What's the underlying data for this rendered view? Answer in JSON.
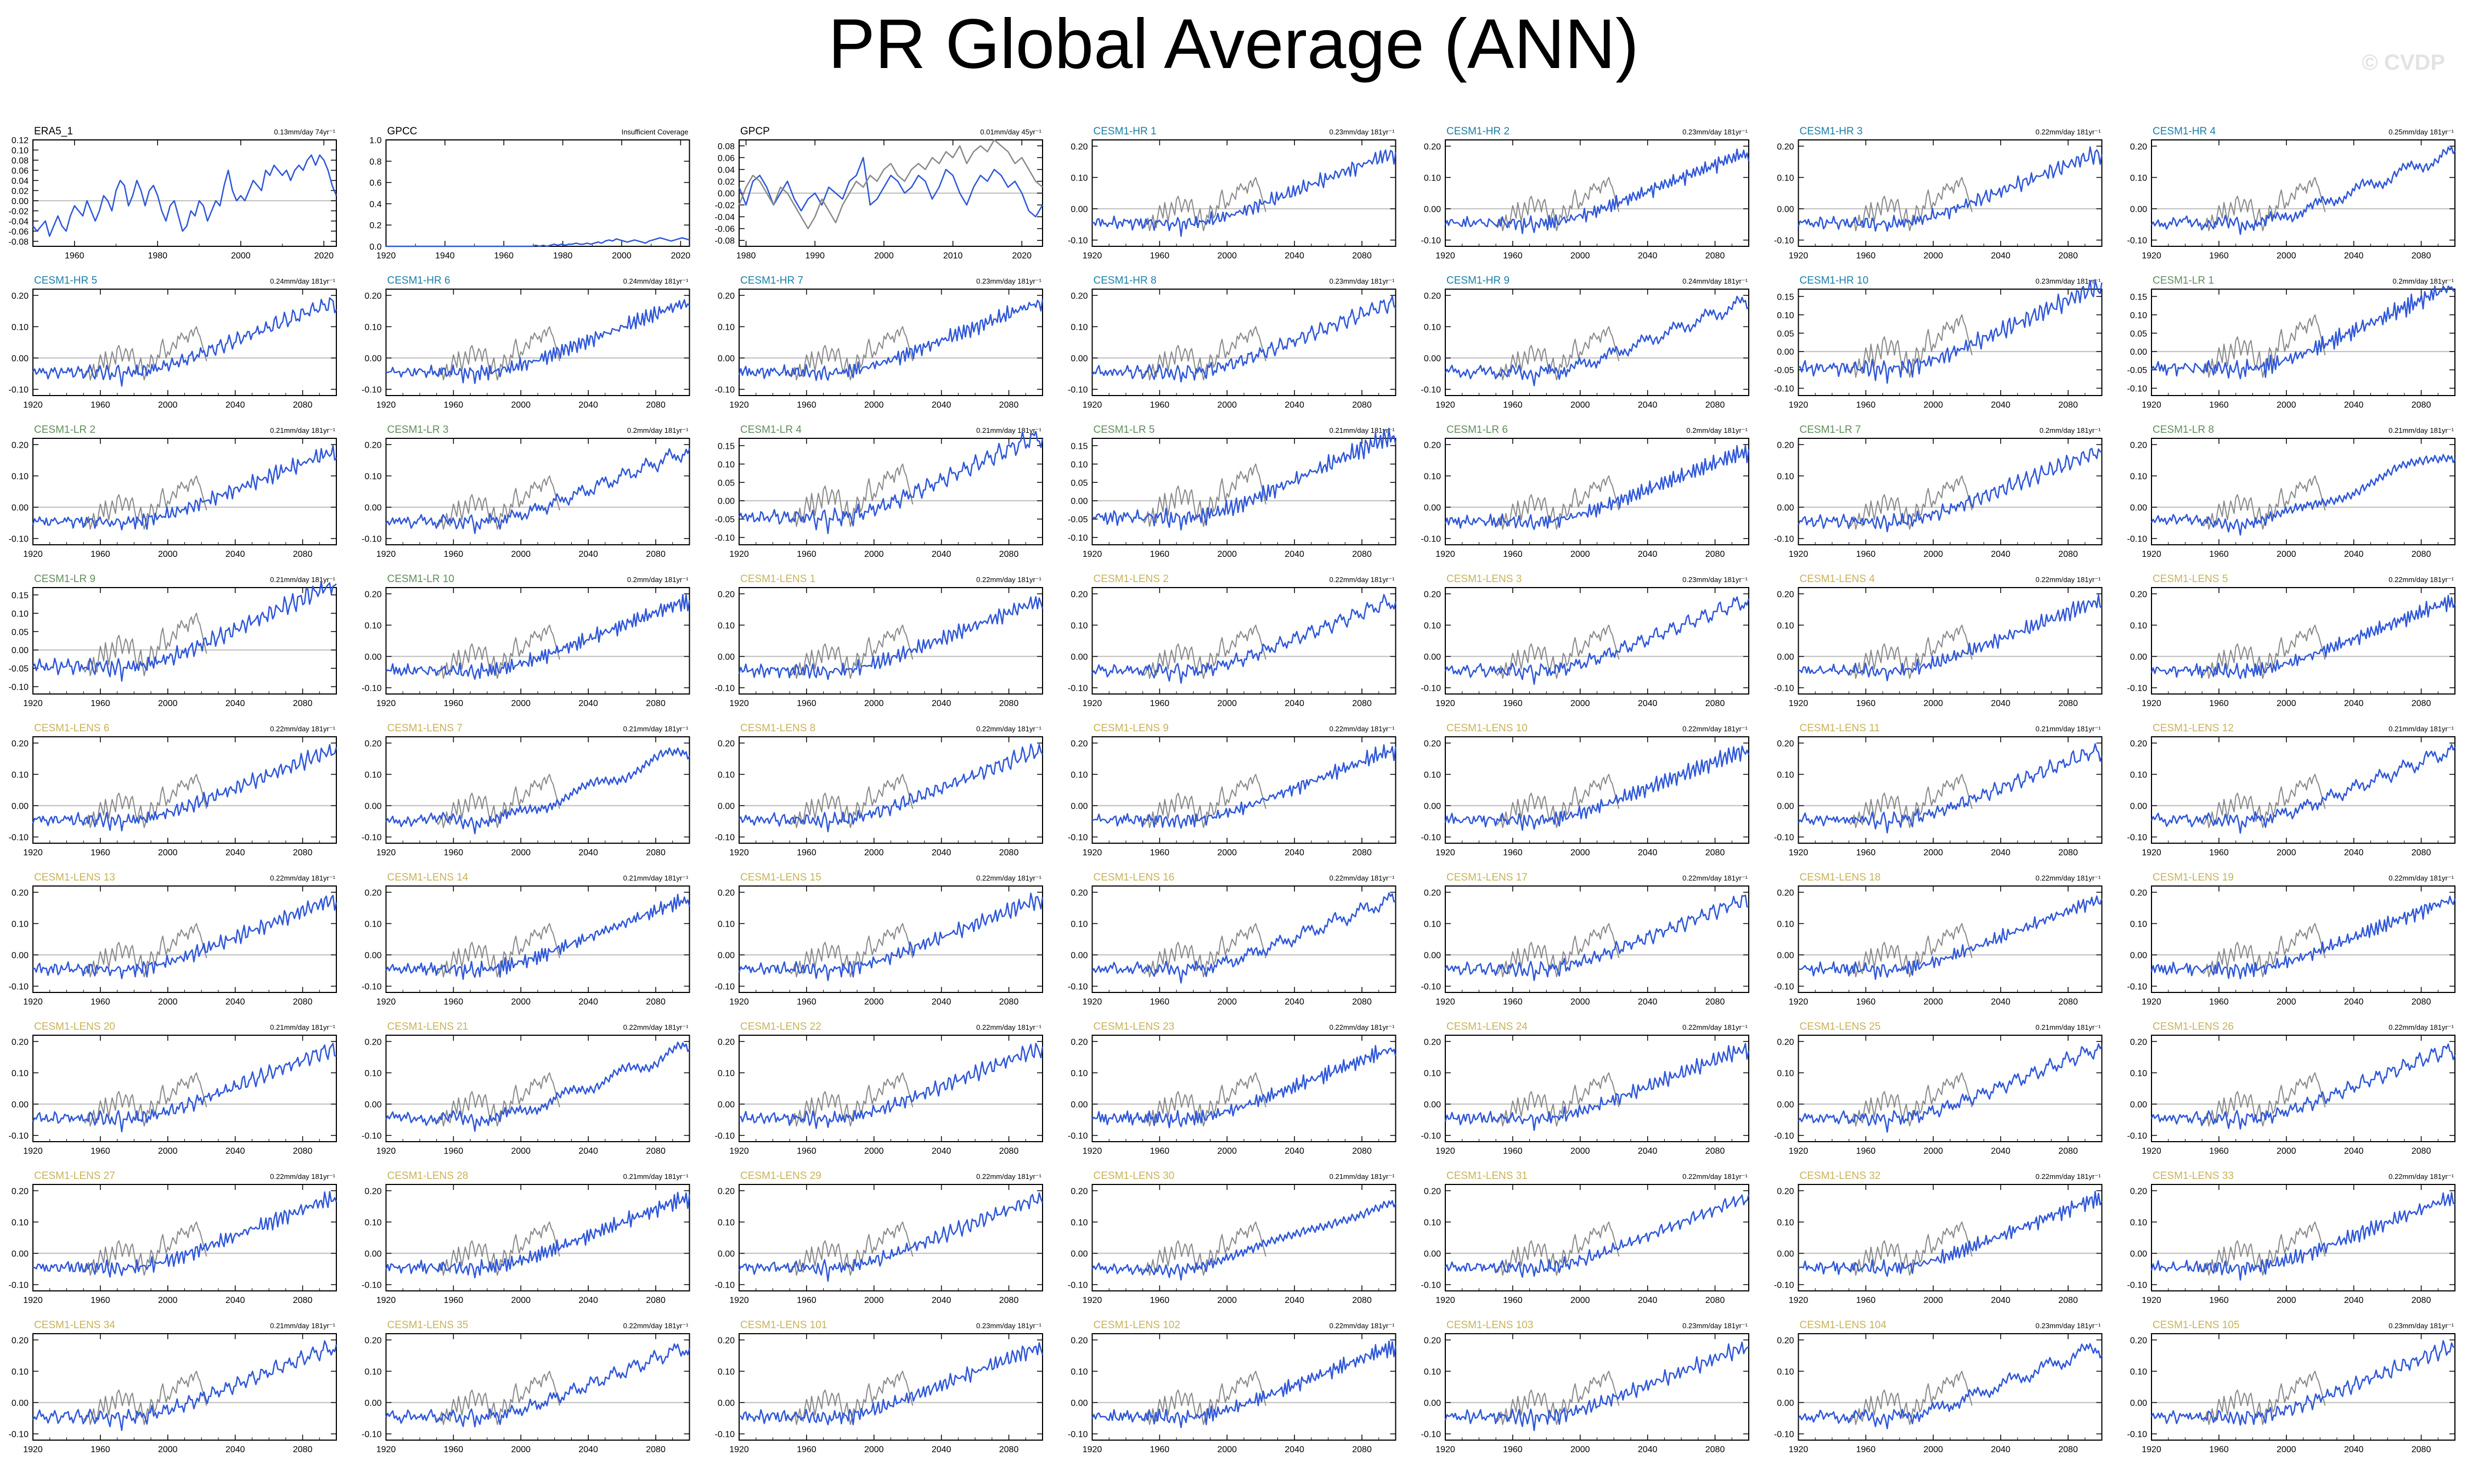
{
  "title": "PR Global Average (ANN)",
  "watermark": "© CVDP",
  "colors": {
    "primary_line": "#2f57d8",
    "secondary_line": "#8a8a8a",
    "hr_label": "#1a7fa8",
    "lr_label": "#5f8f5a",
    "lens_label": "#c9b25a",
    "obs_label": "#000000"
  },
  "chart_data": [
    {
      "name": "ERA5_1",
      "group": "obs",
      "trend": "0.13mm/day 74yr⁻¹",
      "type": "line",
      "x_range": [
        1950,
        2023
      ],
      "xticks": [
        "1960",
        "1980",
        "2000",
        "2020"
      ],
      "ylim": [
        -0.09,
        0.12
      ],
      "yticks": [
        "0.12",
        "0.10",
        "0.08",
        "0.06",
        "0.04",
        "0.02",
        "0.00",
        "-0.02",
        "-0.04",
        "-0.06",
        "-0.08"
      ],
      "series": [
        {
          "values": [
            -0.05,
            -0.06,
            -0.05,
            -0.04,
            -0.07,
            -0.05,
            -0.03,
            -0.05,
            -0.06,
            -0.03,
            -0.01,
            -0.02,
            -0.03,
            0.0,
            -0.02,
            -0.04,
            -0.02,
            0.01,
            0.0,
            -0.02,
            0.02,
            0.04,
            0.03,
            -0.01,
            0.01,
            0.04,
            0.02,
            -0.01,
            0.02,
            0.03,
            0.01,
            -0.02,
            -0.04,
            -0.01,
            0.0,
            -0.03,
            -0.06,
            -0.05,
            -0.02,
            -0.03,
            0.0,
            -0.01,
            -0.04,
            -0.02,
            0.0,
            -0.01,
            0.03,
            0.06,
            0.02,
            0.0,
            0.01,
            0.0,
            0.02,
            0.04,
            0.03,
            0.02,
            0.06,
            0.05,
            0.07,
            0.06,
            0.05,
            0.06,
            0.04,
            0.06,
            0.07,
            0.06,
            0.08,
            0.09,
            0.07,
            0.09,
            0.08,
            0.06,
            0.03,
            0.01
          ]
        }
      ]
    },
    {
      "name": "GPCC",
      "group": "obs",
      "trend": "Insufficient Coverage",
      "type": "line",
      "x_range": [
        1920,
        2023
      ],
      "xticks": [
        "1920",
        "1940",
        "1960",
        "1980",
        "2000",
        "2020"
      ],
      "ylim": [
        0,
        1.0
      ],
      "yticks": [
        "1.0",
        "0.8",
        "0.6",
        "0.4",
        "0.2",
        "0.0"
      ],
      "series": [
        {
          "values": [
            0.0,
            0.0,
            0.0,
            0.0,
            0.0,
            0.0,
            0.0,
            0.0,
            0.0,
            0.0,
            0.0,
            0.0,
            0.0,
            0.0,
            0.0,
            0.0,
            0.0,
            0.0,
            0.0,
            0.0,
            0.0,
            0.0,
            0.0,
            0.0,
            0.0,
            0.0,
            0.0,
            0.0,
            0.0,
            0.0,
            0.0,
            0.0,
            0.0,
            0.0,
            0.0,
            0.0,
            0.0,
            0.0,
            0.0,
            0.0,
            0.0,
            0.01,
            0.0,
            0.01,
            0.0,
            0.01,
            0.02,
            0.01,
            0.02,
            0.01,
            0.02,
            0.02,
            0.03,
            0.02,
            0.02,
            0.03,
            0.02,
            0.03,
            0.04,
            0.03,
            0.05,
            0.06,
            0.05,
            0.07,
            0.06,
            0.05,
            0.04,
            0.05,
            0.06,
            0.05,
            0.04,
            0.03,
            0.05,
            0.06,
            0.07,
            0.08,
            0.07,
            0.06,
            0.05,
            0.06,
            0.07,
            0.08,
            0.07,
            0.06
          ]
        }
      ]
    },
    {
      "name": "GPCP",
      "group": "obs",
      "trend": "0.01mm/day 45yr⁻¹",
      "type": "line",
      "x_range": [
        1979,
        2023
      ],
      "xticks": [
        "1980",
        "1990",
        "2000",
        "2010",
        "2020"
      ],
      "ylim": [
        -0.09,
        0.09
      ],
      "yticks": [
        "0.08",
        "0.06",
        "0.04",
        "0.02",
        "0.00",
        "-0.02",
        "-0.04",
        "-0.06",
        "-0.08"
      ],
      "series": [
        {
          "values": [
            0.01,
            -0.02,
            0.02,
            0.03,
            0.01,
            -0.02,
            0.0,
            0.02,
            -0.01,
            -0.03,
            -0.01,
            0.0,
            -0.02,
            0.01,
            0.0,
            -0.01,
            0.02,
            0.03,
            0.06,
            -0.02,
            -0.01,
            0.01,
            0.03,
            0.02,
            0.0,
            0.01,
            0.03,
            0.02,
            -0.01,
            0.01,
            0.04,
            0.03,
            0.0,
            -0.02,
            0.01,
            0.03,
            0.02,
            0.04,
            0.03,
            0.01,
            0.02,
            0.0,
            -0.03,
            -0.04,
            -0.02
          ]
        },
        {
          "values": [
            -0.02,
            0.01,
            0.03,
            0.02,
            0.0,
            -0.02,
            0.01,
            0.0,
            -0.02,
            -0.04,
            -0.06,
            -0.04,
            -0.01,
            -0.03,
            -0.05,
            -0.02,
            0.0,
            0.02,
            0.01,
            0.03,
            0.02,
            0.04,
            0.05,
            0.03,
            0.02,
            0.04,
            0.05,
            0.04,
            0.06,
            0.05,
            0.07,
            0.06,
            0.08,
            0.05,
            0.07,
            0.08,
            0.07,
            0.09,
            0.08,
            0.07,
            0.05,
            0.06,
            0.04,
            0.02,
            0.01
          ]
        }
      ]
    },
    {
      "name": "CESM1-HR 1",
      "group": "hr",
      "trend": "0.23mm/day 181yr⁻¹"
    },
    {
      "name": "CESM1-HR 2",
      "group": "hr",
      "trend": "0.23mm/day 181yr⁻¹"
    },
    {
      "name": "CESM1-HR 3",
      "group": "hr",
      "trend": "0.22mm/day 181yr⁻¹"
    },
    {
      "name": "CESM1-HR 4",
      "group": "hr",
      "trend": "0.25mm/day 181yr⁻¹"
    },
    {
      "name": "CESM1-HR 5",
      "group": "hr",
      "trend": "0.24mm/day 181yr⁻¹"
    },
    {
      "name": "CESM1-HR 6",
      "group": "hr",
      "trend": "0.24mm/day 181yr⁻¹"
    },
    {
      "name": "CESM1-HR 7",
      "group": "hr",
      "trend": "0.23mm/day 181yr⁻¹"
    },
    {
      "name": "CESM1-HR 8",
      "group": "hr",
      "trend": "0.23mm/day 181yr⁻¹"
    },
    {
      "name": "CESM1-HR 9",
      "group": "hr",
      "trend": "0.24mm/day 181yr⁻¹"
    },
    {
      "name": "CESM1-HR 10",
      "group": "hr",
      "trend": "0.23mm/day 181yr⁻¹",
      "ylim": [
        -0.12,
        0.17
      ],
      "yticks": [
        "0.15",
        "0.10",
        "0.05",
        "0.00",
        "-0.05",
        "-0.10"
      ]
    },
    {
      "name": "CESM1-LR 1",
      "group": "lr",
      "trend": "0.2mm/day 181yr⁻¹",
      "ylim": [
        -0.12,
        0.17
      ],
      "yticks": [
        "0.15",
        "0.10",
        "0.05",
        "0.00",
        "-0.05",
        "-0.10"
      ]
    },
    {
      "name": "CESM1-LR 2",
      "group": "lr",
      "trend": "0.21mm/day 181yr⁻¹"
    },
    {
      "name": "CESM1-LR 3",
      "group": "lr",
      "trend": "0.2mm/day 181yr⁻¹"
    },
    {
      "name": "CESM1-LR 4",
      "group": "lr",
      "trend": "0.21mm/day 181yr⁻¹",
      "ylim": [
        -0.12,
        0.17
      ],
      "yticks": [
        "0.15",
        "0.10",
        "0.05",
        "0.00",
        "-0.05",
        "-0.10"
      ]
    },
    {
      "name": "CESM1-LR 5",
      "group": "lr",
      "trend": "0.21mm/day 181yr⁻¹",
      "ylim": [
        -0.12,
        0.17
      ],
      "yticks": [
        "0.15",
        "0.10",
        "0.05",
        "0.00",
        "-0.05",
        "-0.10"
      ]
    },
    {
      "name": "CESM1-LR 6",
      "group": "lr",
      "trend": "0.2mm/day 181yr⁻¹"
    },
    {
      "name": "CESM1-LR 7",
      "group": "lr",
      "trend": "0.2mm/day 181yr⁻¹"
    },
    {
      "name": "CESM1-LR 8",
      "group": "lr",
      "trend": "0.21mm/day 181yr⁻¹"
    },
    {
      "name": "CESM1-LR 9",
      "group": "lr",
      "trend": "0.21mm/day 181yr⁻¹",
      "ylim": [
        -0.12,
        0.17
      ],
      "yticks": [
        "0.15",
        "0.10",
        "0.05",
        "0.00",
        "-0.05",
        "-0.10"
      ]
    },
    {
      "name": "CESM1-LR 10",
      "group": "lr",
      "trend": "0.2mm/day 181yr⁻¹"
    },
    {
      "name": "CESM1-LENS 1",
      "group": "lens",
      "trend": "0.22mm/day 181yr⁻¹"
    },
    {
      "name": "CESM1-LENS 2",
      "group": "lens",
      "trend": "0.22mm/day 181yr⁻¹"
    },
    {
      "name": "CESM1-LENS 3",
      "group": "lens",
      "trend": "0.23mm/day 181yr⁻¹"
    },
    {
      "name": "CESM1-LENS 4",
      "group": "lens",
      "trend": "0.22mm/day 181yr⁻¹"
    },
    {
      "name": "CESM1-LENS 5",
      "group": "lens",
      "trend": "0.22mm/day 181yr⁻¹"
    },
    {
      "name": "CESM1-LENS 6",
      "group": "lens",
      "trend": "0.22mm/day 181yr⁻¹"
    },
    {
      "name": "CESM1-LENS 7",
      "group": "lens",
      "trend": "0.21mm/day 181yr⁻¹"
    },
    {
      "name": "CESM1-LENS 8",
      "group": "lens",
      "trend": "0.22mm/day 181yr⁻¹"
    },
    {
      "name": "CESM1-LENS 9",
      "group": "lens",
      "trend": "0.22mm/day 181yr⁻¹"
    },
    {
      "name": "CESM1-LENS 10",
      "group": "lens",
      "trend": "0.22mm/day 181yr⁻¹"
    },
    {
      "name": "CESM1-LENS 11",
      "group": "lens",
      "trend": "0.21mm/day 181yr⁻¹"
    },
    {
      "name": "CESM1-LENS 12",
      "group": "lens",
      "trend": "0.21mm/day 181yr⁻¹"
    },
    {
      "name": "CESM1-LENS 13",
      "group": "lens",
      "trend": "0.22mm/day 181yr⁻¹"
    },
    {
      "name": "CESM1-LENS 14",
      "group": "lens",
      "trend": "0.21mm/day 181yr⁻¹"
    },
    {
      "name": "CESM1-LENS 15",
      "group": "lens",
      "trend": "0.22mm/day 181yr⁻¹"
    },
    {
      "name": "CESM1-LENS 16",
      "group": "lens",
      "trend": "0.22mm/day 181yr⁻¹"
    },
    {
      "name": "CESM1-LENS 17",
      "group": "lens",
      "trend": "0.22mm/day 181yr⁻¹"
    },
    {
      "name": "CESM1-LENS 18",
      "group": "lens",
      "trend": "0.22mm/day 181yr⁻¹"
    },
    {
      "name": "CESM1-LENS 19",
      "group": "lens",
      "trend": "0.22mm/day 181yr⁻¹"
    },
    {
      "name": "CESM1-LENS 20",
      "group": "lens",
      "trend": "0.21mm/day 181yr⁻¹"
    },
    {
      "name": "CESM1-LENS 21",
      "group": "lens",
      "trend": "0.22mm/day 181yr⁻¹"
    },
    {
      "name": "CESM1-LENS 22",
      "group": "lens",
      "trend": "0.22mm/day 181yr⁻¹"
    },
    {
      "name": "CESM1-LENS 23",
      "group": "lens",
      "trend": "0.22mm/day 181yr⁻¹"
    },
    {
      "name": "CESM1-LENS 24",
      "group": "lens",
      "trend": "0.22mm/day 181yr⁻¹"
    },
    {
      "name": "CESM1-LENS 25",
      "group": "lens",
      "trend": "0.21mm/day 181yr⁻¹"
    },
    {
      "name": "CESM1-LENS 26",
      "group": "lens",
      "trend": "0.22mm/day 181yr⁻¹"
    },
    {
      "name": "CESM1-LENS 27",
      "group": "lens",
      "trend": "0.22mm/day 181yr⁻¹"
    },
    {
      "name": "CESM1-LENS 28",
      "group": "lens",
      "trend": "0.21mm/day 181yr⁻¹"
    },
    {
      "name": "CESM1-LENS 29",
      "group": "lens",
      "trend": "0.22mm/day 181yr⁻¹"
    },
    {
      "name": "CESM1-LENS 30",
      "group": "lens",
      "trend": "0.21mm/day 181yr⁻¹"
    },
    {
      "name": "CESM1-LENS 31",
      "group": "lens",
      "trend": "0.22mm/day 181yr⁻¹"
    },
    {
      "name": "CESM1-LENS 32",
      "group": "lens",
      "trend": "0.22mm/day 181yr⁻¹"
    },
    {
      "name": "CESM1-LENS 33",
      "group": "lens",
      "trend": "0.22mm/day 181yr⁻¹"
    },
    {
      "name": "CESM1-LENS 34",
      "group": "lens",
      "trend": "0.21mm/day 181yr⁻¹"
    },
    {
      "name": "CESM1-LENS 35",
      "group": "lens",
      "trend": "0.22mm/day 181yr⁻¹"
    },
    {
      "name": "CESM1-LENS 101",
      "group": "lens",
      "trend": "0.23mm/day 181yr⁻¹"
    },
    {
      "name": "CESM1-LENS 102",
      "group": "lens",
      "trend": "0.22mm/day 181yr⁻¹"
    },
    {
      "name": "CESM1-LENS 103",
      "group": "lens",
      "trend": "0.23mm/day 181yr⁻¹"
    },
    {
      "name": "CESM1-LENS 104",
      "group": "lens",
      "trend": "0.23mm/day 181yr⁻¹"
    },
    {
      "name": "CESM1-LENS 105",
      "group": "lens",
      "trend": "0.23mm/day 181yr⁻¹"
    }
  ],
  "model_defaults": {
    "type": "line",
    "x_range": [
      1920,
      2100
    ],
    "xticks": [
      "1920",
      "1960",
      "2000",
      "2040",
      "2080"
    ],
    "ylim": [
      -0.12,
      0.22
    ],
    "yticks": [
      "0.20",
      "0.10",
      "0.00",
      "-0.10"
    ],
    "model_series_shape": [
      -0.05,
      -0.04,
      -0.05,
      -0.04,
      -0.03,
      -0.05,
      -0.04,
      -0.05,
      -0.04,
      -0.06,
      -0.05,
      -0.04,
      -0.05,
      -0.03,
      -0.04,
      -0.06,
      -0.05,
      -0.04,
      -0.05,
      -0.04,
      -0.04,
      -0.03,
      -0.05,
      -0.04,
      -0.06,
      -0.05,
      -0.04,
      -0.03,
      -0.05,
      -0.04,
      -0.06,
      -0.05,
      -0.04,
      -0.05,
      -0.03,
      -0.04,
      -0.05,
      -0.06,
      -0.04,
      -0.05,
      -0.03,
      -0.04,
      -0.06,
      -0.05,
      -0.03,
      -0.05,
      -0.07,
      -0.04,
      -0.05,
      -0.06,
      -0.04,
      -0.03,
      -0.05,
      -0.08,
      -0.04,
      -0.05,
      -0.06,
      -0.03,
      -0.04,
      -0.05,
      -0.04,
      -0.06,
      -0.03,
      -0.05,
      -0.04,
      -0.05,
      -0.03,
      -0.04,
      -0.06,
      -0.03,
      -0.04,
      -0.02,
      -0.05,
      -0.03,
      -0.04,
      -0.02,
      -0.03,
      -0.04,
      -0.02,
      -0.03,
      -0.01,
      -0.03,
      -0.02,
      -0.01,
      -0.03,
      -0.02,
      0.0,
      -0.02,
      -0.01,
      0.0,
      -0.02,
      0.0,
      -0.01,
      0.01,
      0.0,
      0.01,
      -0.01,
      0.01,
      0.02,
      0.0,
      0.02,
      0.01,
      0.03,
      0.02,
      0.01,
      0.03,
      0.02,
      0.04,
      0.03,
      0.02,
      0.04,
      0.03,
      0.05,
      0.04,
      0.03,
      0.05,
      0.04,
      0.06,
      0.05,
      0.04,
      0.06,
      0.05,
      0.07,
      0.06,
      0.05,
      0.07,
      0.08,
      0.06,
      0.07,
      0.08,
      0.07,
      0.09,
      0.08,
      0.07,
      0.09,
      0.08,
      0.1,
      0.09,
      0.08,
      0.1,
      0.09,
      0.11,
      0.1,
      0.09,
      0.11,
      0.12,
      0.1,
      0.11,
      0.12,
      0.11,
      0.13,
      0.12,
      0.11,
      0.13,
      0.12,
      0.14,
      0.13,
      0.12,
      0.14,
      0.13,
      0.15,
      0.14,
      0.13,
      0.15,
      0.16,
      0.14,
      0.15,
      0.16,
      0.15,
      0.17,
      0.16,
      0.15,
      0.17,
      0.16,
      0.18,
      0.17,
      0.16,
      0.18,
      0.17,
      0.18,
      0.16,
      0.17
    ],
    "obs_overlay_range": [
      1950,
      2023
    ],
    "obs_overlay_shape": [
      -0.05,
      -0.06,
      -0.05,
      -0.03,
      -0.07,
      -0.05,
      -0.02,
      -0.05,
      -0.06,
      -0.02,
      0.01,
      -0.01,
      -0.03,
      0.02,
      -0.01,
      -0.04,
      -0.01,
      0.02,
      0.0,
      -0.02,
      0.03,
      0.04,
      0.02,
      -0.01,
      0.01,
      0.03,
      0.02,
      -0.01,
      0.02,
      0.03,
      0.0,
      -0.03,
      -0.05,
      -0.02,
      0.0,
      -0.04,
      -0.07,
      -0.05,
      -0.02,
      -0.03,
      0.01,
      0.0,
      -0.03,
      -0.02,
      0.01,
      0.0,
      0.04,
      0.06,
      0.03,
      0.0,
      0.02,
      0.01,
      0.03,
      0.05,
      0.04,
      0.03,
      0.07,
      0.06,
      0.08,
      0.07,
      0.06,
      0.07,
      0.05,
      0.08,
      0.09,
      0.07,
      0.09,
      0.1,
      0.08,
      0.07,
      0.05,
      0.03,
      0.01,
      -0.01
    ]
  }
}
